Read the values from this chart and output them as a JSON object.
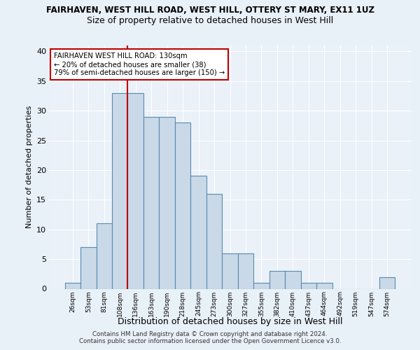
{
  "title1": "FAIRHAVEN, WEST HILL ROAD, WEST HILL, OTTERY ST MARY, EX11 1UZ",
  "title2": "Size of property relative to detached houses in West Hill",
  "xlabel": "Distribution of detached houses by size in West Hill",
  "ylabel": "Number of detached properties",
  "categories": [
    "26sqm",
    "53sqm",
    "81sqm",
    "108sqm",
    "136sqm",
    "163sqm",
    "190sqm",
    "218sqm",
    "245sqm",
    "273sqm",
    "300sqm",
    "327sqm",
    "355sqm",
    "382sqm",
    "410sqm",
    "437sqm",
    "464sqm",
    "492sqm",
    "519sqm",
    "547sqm",
    "574sqm"
  ],
  "values": [
    1,
    7,
    11,
    33,
    33,
    29,
    29,
    28,
    19,
    16,
    6,
    6,
    1,
    3,
    3,
    1,
    1,
    0,
    0,
    0,
    2
  ],
  "bar_color": "#c9d9e8",
  "bar_edge_color": "#5a8ab0",
  "vline_pos": 3.5,
  "vline_color": "#c00000",
  "annotation_box_text": "FAIRHAVEN WEST HILL ROAD: 130sqm\n← 20% of detached houses are smaller (38)\n79% of semi-detached houses are larger (150) →",
  "ylim": [
    0,
    41
  ],
  "yticks": [
    0,
    5,
    10,
    15,
    20,
    25,
    30,
    35,
    40
  ],
  "footnote": "Contains HM Land Registry data © Crown copyright and database right 2024.\nContains public sector information licensed under the Open Government Licence v3.0.",
  "bg_color": "#e8f0f8",
  "plot_bg_color": "#eaf1f8",
  "grid_color": "#ffffff"
}
